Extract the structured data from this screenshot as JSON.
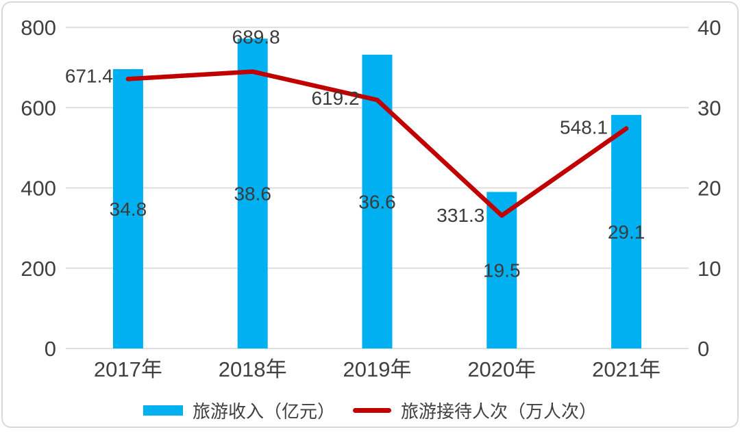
{
  "colors": {
    "bar": "#00B0F0",
    "line": "#C00000",
    "grid": "#D9D9D9",
    "text": "#404040",
    "border": "#D9D9D9",
    "background": "#FFFFFF"
  },
  "chart_data": {
    "type": "bar+line combo, dual axis",
    "title": "",
    "categories": [
      "2017年",
      "2018年",
      "2019年",
      "2020年",
      "2021年"
    ],
    "series": [
      {
        "name": "旅游收入（亿元）",
        "type": "bar",
        "axis": "right",
        "color": "#00B0F0",
        "values": [
          34.8,
          38.6,
          36.6,
          19.5,
          29.1
        ]
      },
      {
        "name": "旅游接待人次（万人次）",
        "type": "line",
        "axis": "left",
        "color": "#C00000",
        "values": [
          671.4,
          689.8,
          619.2,
          331.3,
          548.1
        ]
      }
    ],
    "left_axis": {
      "min": 0,
      "max": 800,
      "ticks": [
        0,
        200,
        400,
        600,
        800
      ]
    },
    "right_axis": {
      "min": 0,
      "max": 40,
      "ticks": [
        0,
        10,
        20,
        30,
        40
      ]
    },
    "grid": true,
    "data_labels": true,
    "legend_position": "bottom"
  }
}
